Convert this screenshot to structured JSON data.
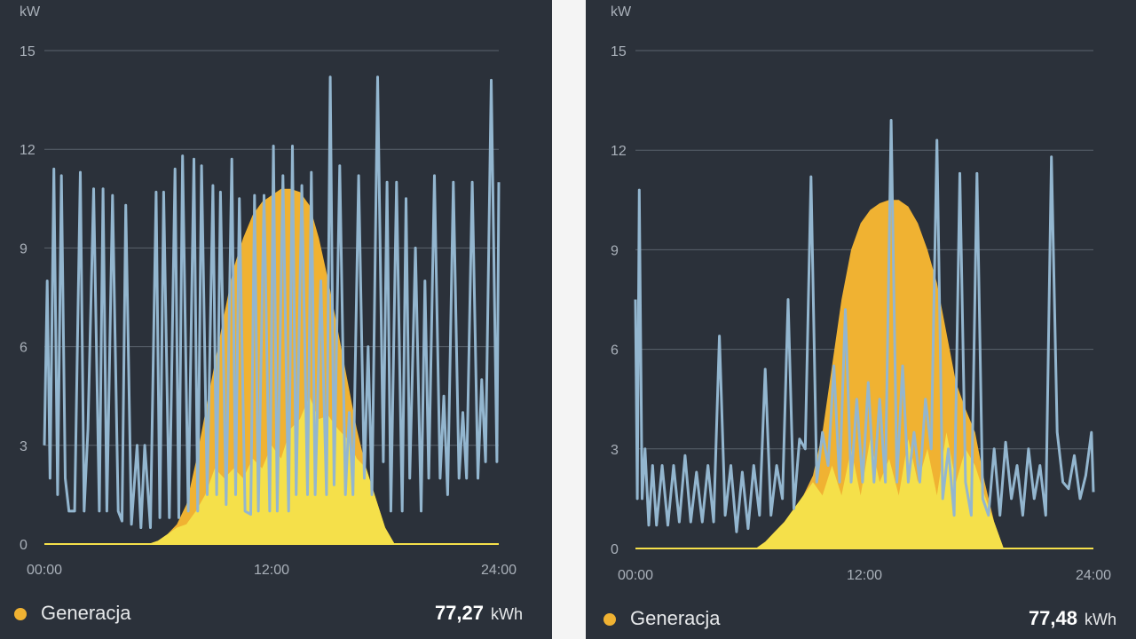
{
  "colors": {
    "background": "#2b313a",
    "grid": "#5b636d",
    "axis_text": "#a9b0b9",
    "generation": "#f0b232",
    "self_consumption": "#f5e04a",
    "consumption": "#93b6cf"
  },
  "chart_data": [
    {
      "type": "area",
      "ylabel": "kW",
      "yticks": [
        0,
        3,
        6,
        9,
        12,
        15
      ],
      "ylim": [
        0,
        15
      ],
      "xticks": [
        "00:00",
        "12:00",
        "24:00"
      ],
      "xlim_hours": [
        0,
        24
      ],
      "grid": true,
      "series": [
        {
          "name": "Generacja",
          "kind": "area",
          "x": [
            0,
            5.5,
            6,
            6.5,
            7,
            7.5,
            8,
            8.5,
            9,
            9.5,
            10,
            10.5,
            11,
            11.5,
            12,
            12.5,
            13,
            13.5,
            14,
            14.5,
            15,
            15.5,
            16,
            16.5,
            17,
            17.5,
            18,
            18.5,
            24
          ],
          "y": [
            0,
            0,
            0.1,
            0.3,
            0.6,
            1.2,
            2.5,
            4.0,
            5.5,
            7.0,
            8.4,
            9.3,
            10.0,
            10.4,
            10.6,
            10.8,
            10.8,
            10.7,
            10.3,
            9.3,
            8.0,
            6.5,
            5.0,
            3.5,
            2.3,
            1.4,
            0.5,
            0,
            0
          ]
        },
        {
          "name": "",
          "kind": "area",
          "x": [
            0,
            5.5,
            6,
            6.5,
            7,
            7.5,
            8,
            8.5,
            9,
            9.5,
            10,
            10.5,
            11,
            11.5,
            12,
            12.5,
            13,
            13.5,
            14,
            14.5,
            15,
            15.5,
            16,
            16.5,
            17,
            17.5,
            18,
            18.5,
            24
          ],
          "y": [
            0,
            0,
            0.1,
            0.3,
            0.5,
            0.6,
            1.0,
            1.5,
            2.3,
            2.0,
            2.3,
            2.0,
            2.6,
            2.3,
            3.0,
            2.6,
            3.5,
            3.8,
            4.5,
            3.8,
            3.9,
            3.5,
            3.2,
            2.6,
            2.3,
            1.4,
            0.5,
            0,
            0
          ]
        },
        {
          "name": "",
          "kind": "line",
          "x": [
            0,
            0.15,
            0.3,
            0.5,
            0.7,
            0.9,
            1.1,
            1.3,
            1.6,
            1.9,
            2.1,
            2.3,
            2.6,
            2.9,
            3.1,
            3.3,
            3.6,
            3.9,
            4.1,
            4.3,
            4.6,
            4.9,
            5.1,
            5.3,
            5.6,
            5.9,
            6.1,
            6.3,
            6.6,
            6.9,
            7.1,
            7.3,
            7.6,
            7.9,
            8.1,
            8.3,
            8.6,
            8.9,
            9.1,
            9.3,
            9.6,
            9.9,
            10.1,
            10.3,
            10.6,
            10.9,
            11.1,
            11.3,
            11.6,
            11.9,
            12.1,
            12.3,
            12.6,
            12.9,
            13.1,
            13.3,
            13.6,
            13.9,
            14.1,
            14.3,
            14.6,
            14.9,
            15.1,
            15.3,
            15.6,
            15.9,
            16.1,
            16.3,
            16.6,
            16.9,
            17.1,
            17.3,
            17.6,
            17.9,
            18.1,
            18.3,
            18.6,
            18.9,
            19.1,
            19.3,
            19.6,
            19.9,
            20.1,
            20.3,
            20.6,
            20.9,
            21.1,
            21.3,
            21.6,
            21.9,
            22.1,
            22.3,
            22.6,
            22.9,
            23.1,
            23.3,
            23.6,
            23.9,
            24
          ],
          "y": [
            3.0,
            8.0,
            2.0,
            11.4,
            1.5,
            11.2,
            2.0,
            1.0,
            1.0,
            11.3,
            1.0,
            3.5,
            10.8,
            1.0,
            10.8,
            1.0,
            10.6,
            1.0,
            0.7,
            10.3,
            0.6,
            3.0,
            0.5,
            3.0,
            0.5,
            10.7,
            0.8,
            10.7,
            0.8,
            11.4,
            0.8,
            11.8,
            1.0,
            11.7,
            1.0,
            11.5,
            1.5,
            10.9,
            1.5,
            10.7,
            1.2,
            11.7,
            1.5,
            10.5,
            1.0,
            0.9,
            10.6,
            1.0,
            10.6,
            1.0,
            12.1,
            1.0,
            11.2,
            1.0,
            12.1,
            1.5,
            10.9,
            1.5,
            11.3,
            1.5,
            8.0,
            1.5,
            14.2,
            1.8,
            11.5,
            1.5,
            4.0,
            1.5,
            11.2,
            2.0,
            6.0,
            1.5,
            14.2,
            2.5,
            11.0,
            1.0,
            11.0,
            1.0,
            10.5,
            2.0,
            9.0,
            1.0,
            8.0,
            2.0,
            11.2,
            2.0,
            4.5,
            1.5,
            11.0,
            2.0,
            4.0,
            2.0,
            11.0,
            2.0,
            5.0,
            2.5,
            14.1,
            2.5,
            11.0
          ]
        }
      ],
      "legend": [
        {
          "label": "Generacja",
          "value": "77,27",
          "unit": "kWh"
        }
      ]
    },
    {
      "type": "area",
      "ylabel": "kW",
      "yticks": [
        0,
        3,
        6,
        9,
        12,
        15
      ],
      "ylim": [
        0,
        15
      ],
      "xticks": [
        "00:00",
        "12:00",
        "24:00"
      ],
      "xlim_hours": [
        0,
        24
      ],
      "grid": true,
      "series": [
        {
          "name": "Generacja",
          "kind": "area",
          "x": [
            0,
            6.3,
            6.8,
            7.3,
            7.8,
            8.3,
            8.8,
            9.3,
            9.8,
            10.3,
            10.8,
            11.3,
            11.8,
            12.3,
            12.8,
            13.3,
            13.8,
            14.3,
            14.8,
            15.3,
            15.8,
            16.3,
            16.8,
            17.3,
            17.8,
            18.3,
            18.8,
            19.3,
            24
          ],
          "y": [
            0,
            0,
            0.2,
            0.5,
            0.8,
            1.2,
            1.6,
            2.2,
            3.5,
            5.5,
            7.5,
            9.0,
            9.8,
            10.2,
            10.4,
            10.5,
            10.5,
            10.3,
            9.8,
            9.0,
            8.0,
            6.5,
            5.0,
            4.2,
            3.5,
            2.0,
            0.8,
            0,
            0
          ]
        },
        {
          "name": "",
          "kind": "area",
          "x": [
            0,
            6.3,
            6.8,
            7.3,
            7.8,
            8.3,
            8.8,
            9.3,
            9.8,
            10.3,
            10.8,
            11.3,
            11.8,
            12.3,
            12.8,
            13.3,
            13.8,
            14.3,
            14.8,
            15.3,
            15.8,
            16.3,
            16.8,
            17.3,
            17.8,
            18.3,
            18.8,
            19.3,
            24
          ],
          "y": [
            0,
            0,
            0.2,
            0.5,
            0.8,
            1.2,
            1.6,
            2.0,
            1.6,
            2.5,
            1.6,
            3.0,
            1.6,
            3.3,
            2.0,
            2.7,
            1.6,
            3.3,
            2.0,
            3.0,
            1.6,
            3.5,
            2.0,
            3.0,
            2.5,
            1.6,
            0.8,
            0,
            0
          ]
        },
        {
          "name": "",
          "kind": "line",
          "x": [
            0,
            0.1,
            0.2,
            0.35,
            0.5,
            0.7,
            0.9,
            1.1,
            1.4,
            1.7,
            2.0,
            2.3,
            2.6,
            2.9,
            3.2,
            3.5,
            3.8,
            4.1,
            4.4,
            4.7,
            5.0,
            5.3,
            5.6,
            5.9,
            6.2,
            6.5,
            6.8,
            7.1,
            7.4,
            7.7,
            8.0,
            8.3,
            8.6,
            8.9,
            9.2,
            9.5,
            9.8,
            10.1,
            10.4,
            10.7,
            11.0,
            11.3,
            11.6,
            11.9,
            12.2,
            12.5,
            12.8,
            13.1,
            13.4,
            13.7,
            14.0,
            14.3,
            14.6,
            14.9,
            15.2,
            15.5,
            15.8,
            16.1,
            16.4,
            16.7,
            17.0,
            17.3,
            17.6,
            17.9,
            18.2,
            18.5,
            18.8,
            19.1,
            19.4,
            19.7,
            20.0,
            20.3,
            20.6,
            20.9,
            21.2,
            21.5,
            21.8,
            22.1,
            22.4,
            22.7,
            23.0,
            23.3,
            23.6,
            23.9,
            24
          ],
          "y": [
            7.5,
            1.5,
            10.8,
            1.5,
            3.0,
            0.7,
            2.5,
            0.7,
            2.5,
            0.7,
            2.5,
            0.8,
            2.8,
            0.8,
            2.3,
            0.8,
            2.5,
            0.8,
            6.4,
            1.0,
            2.5,
            0.5,
            2.3,
            0.6,
            2.5,
            1.0,
            5.4,
            1.0,
            2.5,
            1.5,
            7.5,
            1.2,
            3.3,
            3.0,
            11.2,
            2.0,
            3.5,
            2.5,
            5.5,
            2.0,
            7.2,
            2.0,
            4.5,
            2.0,
            5.0,
            2.0,
            4.5,
            2.0,
            12.9,
            2.0,
            5.5,
            2.0,
            3.5,
            2.0,
            4.5,
            3.0,
            12.3,
            1.5,
            3.0,
            1.0,
            11.3,
            2.0,
            1.0,
            11.3,
            1.5,
            1.0,
            3.0,
            1.0,
            3.2,
            1.5,
            2.5,
            1.0,
            3.0,
            1.5,
            2.5,
            1.0,
            11.8,
            3.5,
            2.0,
            1.8,
            2.8,
            1.5,
            2.2,
            3.5,
            1.7
          ]
        }
      ],
      "legend": [
        {
          "label": "Generacja",
          "value": "77,48",
          "unit": "kWh"
        }
      ]
    }
  ]
}
